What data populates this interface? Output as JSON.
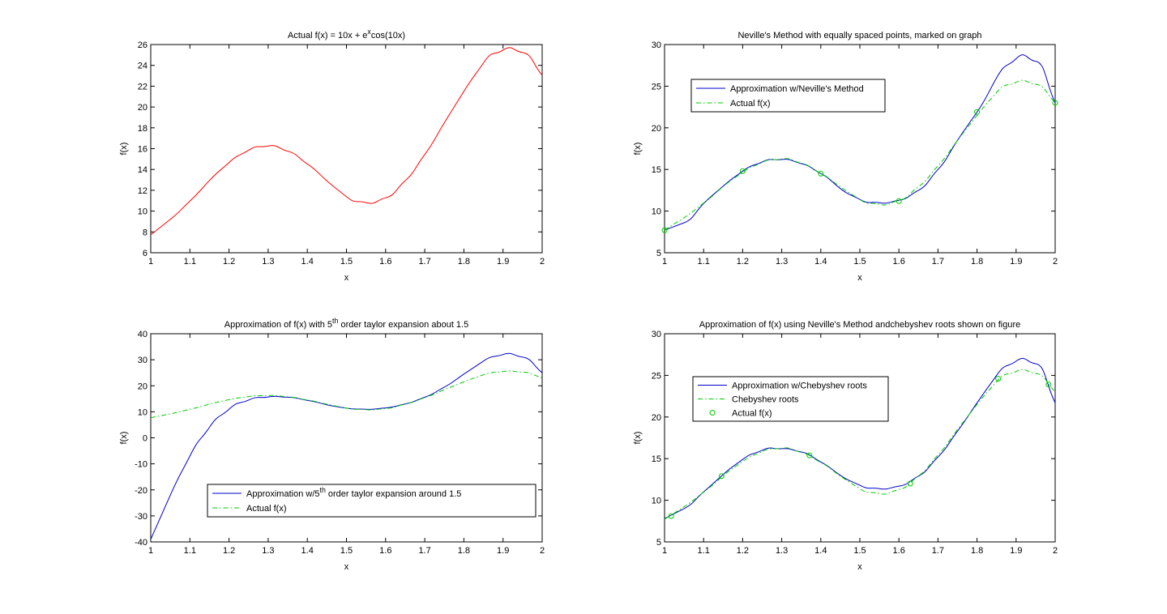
{
  "figure": {
    "background": "#ffffff",
    "colors": {
      "actual_red": "#ff0000",
      "approx_blue": "#0000cc",
      "actual_green": "#00cc00"
    }
  },
  "chart_data": [
    {
      "type": "line",
      "title": {
        "pre": "Actual f(x) = 10x + e",
        "sup": "x",
        "post": "cos(10x)"
      },
      "xlabel": "x",
      "ylabel": "f(x)",
      "xlim": [
        1,
        2
      ],
      "ylim": [
        6,
        26
      ],
      "xticks": [
        "1",
        "1.1",
        "1.2",
        "1.3",
        "1.4",
        "1.5",
        "1.6",
        "1.7",
        "1.8",
        "1.9",
        "2"
      ],
      "yticks": [
        "6",
        "8",
        "10",
        "12",
        "14",
        "16",
        "18",
        "20",
        "22",
        "24",
        "26"
      ],
      "legend": null,
      "series": [
        {
          "style": "solid",
          "color": "#ff0000",
          "x": [
            1.0,
            1.05,
            1.1,
            1.15,
            1.2,
            1.25,
            1.3,
            1.35,
            1.4,
            1.45,
            1.5,
            1.55,
            1.6,
            1.65,
            1.7,
            1.75,
            1.8,
            1.85,
            1.9,
            1.95,
            2.0
          ],
          "y": [
            7.72,
            9.21,
            10.96,
            12.94,
            14.66,
            15.85,
            16.25,
            15.75,
            14.53,
            12.91,
            11.38,
            10.82,
            11.28,
            12.92,
            15.44,
            18.49,
            21.51,
            24.24,
            25.47,
            25.23,
            23.05
          ]
        }
      ]
    },
    {
      "type": "line",
      "title": {
        "pre": "Neville's Method with equally spaced points, marked on graph",
        "sup": "",
        "post": ""
      },
      "xlabel": "x",
      "ylabel": "f(x)",
      "xlim": [
        1,
        2
      ],
      "ylim": [
        5,
        30
      ],
      "xticks": [
        "1",
        "1.1",
        "1.2",
        "1.3",
        "1.4",
        "1.5",
        "1.6",
        "1.7",
        "1.8",
        "1.9",
        "2"
      ],
      "yticks": [
        "5",
        "10",
        "15",
        "20",
        "25",
        "30"
      ],
      "legend": {
        "placement": "top-left",
        "entries": [
          {
            "label": "Approximation w/Neville's Method",
            "style": "solid",
            "color": "#0000cc",
            "marker": false
          },
          {
            "label": "Actual f(x)",
            "style": "dashdot",
            "color": "#00cc00",
            "marker": false
          }
        ]
      },
      "series": [
        {
          "style": "solid",
          "color": "#0000cc",
          "x": [
            1.0,
            1.05,
            1.1,
            1.15,
            1.2,
            1.25,
            1.3,
            1.35,
            1.4,
            1.45,
            1.5,
            1.55,
            1.6,
            1.65,
            1.7,
            1.75,
            1.8,
            1.85,
            1.9,
            1.95,
            2.0
          ],
          "y": [
            7.7,
            8.6,
            10.9,
            13.0,
            14.8,
            15.9,
            16.2,
            15.7,
            14.5,
            12.7,
            11.4,
            11.0,
            11.3,
            12.5,
            15.0,
            18.5,
            21.9,
            26.0,
            28.3,
            28.0,
            23.0
          ]
        },
        {
          "style": "dashdot",
          "color": "#00cc00",
          "x": [
            1.0,
            1.05,
            1.1,
            1.15,
            1.2,
            1.25,
            1.3,
            1.35,
            1.4,
            1.45,
            1.5,
            1.55,
            1.6,
            1.65,
            1.7,
            1.75,
            1.8,
            1.85,
            1.9,
            1.95,
            2.0
          ],
          "y": [
            7.72,
            9.21,
            10.96,
            12.94,
            14.66,
            15.85,
            16.25,
            15.75,
            14.53,
            12.91,
            11.38,
            10.82,
            11.28,
            12.92,
            15.44,
            18.49,
            21.51,
            24.24,
            25.47,
            25.23,
            23.05
          ]
        },
        {
          "style": "markers",
          "color": "#00cc00",
          "x": [
            1.0,
            1.2,
            1.4,
            1.6,
            1.8,
            2.0
          ],
          "y": [
            7.7,
            14.8,
            14.5,
            11.2,
            21.9,
            23.0
          ]
        }
      ]
    },
    {
      "type": "line",
      "title": {
        "pre": "Approximation of f(x) with 5",
        "sup": "th",
        "post": " order taylor expansion about 1.5"
      },
      "xlabel": "x",
      "ylabel": "f(x)",
      "xlim": [
        1,
        2
      ],
      "ylim": [
        -40,
        40
      ],
      "xticks": [
        "1",
        "1.1",
        "1.2",
        "1.3",
        "1.4",
        "1.5",
        "1.6",
        "1.7",
        "1.8",
        "1.9",
        "2"
      ],
      "yticks": [
        "-40",
        "-30",
        "-20",
        "-10",
        "0",
        "10",
        "20",
        "30",
        "40"
      ],
      "legend": {
        "placement": "bottom-center",
        "entries": [
          {
            "label": {
              "pre": "Approximation w/5",
              "sup": "th",
              "post": " order taylor expansion around 1.5"
            },
            "style": "solid",
            "color": "#0000cc",
            "marker": false
          },
          {
            "label": "Actual f(x)",
            "style": "dashdot",
            "color": "#00cc00",
            "marker": false
          }
        ]
      },
      "series": [
        {
          "style": "solid",
          "color": "#0000cc",
          "x": [
            1.0,
            1.05,
            1.1,
            1.15,
            1.2,
            1.25,
            1.3,
            1.35,
            1.4,
            1.45,
            1.5,
            1.55,
            1.6,
            1.65,
            1.7,
            1.75,
            1.8,
            1.85,
            1.9,
            1.95,
            2.0
          ],
          "y": [
            -39,
            -22,
            -7,
            4,
            11,
            14.5,
            15.7,
            15.6,
            14.4,
            12.7,
            11.4,
            11.0,
            11.5,
            13.0,
            15.6,
            19.5,
            24.5,
            29.5,
            32.0,
            31.0,
            25.0
          ]
        },
        {
          "style": "dashdot",
          "color": "#00cc00",
          "x": [
            1.0,
            1.05,
            1.1,
            1.15,
            1.2,
            1.25,
            1.3,
            1.35,
            1.4,
            1.45,
            1.5,
            1.55,
            1.6,
            1.65,
            1.7,
            1.75,
            1.8,
            1.85,
            1.9,
            1.95,
            2.0
          ],
          "y": [
            7.72,
            9.21,
            10.96,
            12.94,
            14.66,
            15.85,
            16.25,
            15.75,
            14.53,
            12.91,
            11.38,
            10.82,
            11.28,
            12.92,
            15.44,
            18.49,
            21.51,
            24.24,
            25.47,
            25.23,
            23.05
          ]
        }
      ]
    },
    {
      "type": "line",
      "title": {
        "pre": "Approximation of f(x) using Neville's Method andchebyshev roots shown on figure",
        "sup": "",
        "post": ""
      },
      "xlabel": "x",
      "ylabel": "f(x)",
      "xlim": [
        1,
        2
      ],
      "ylim": [
        5,
        30
      ],
      "xticks": [
        "1",
        "1.1",
        "1.2",
        "1.3",
        "1.4",
        "1.5",
        "1.6",
        "1.7",
        "1.8",
        "1.9",
        "2"
      ],
      "yticks": [
        "5",
        "10",
        "15",
        "20",
        "25",
        "30"
      ],
      "legend": {
        "placement": "top-left",
        "entries": [
          {
            "label": "Approximation w/Chebyshev roots",
            "style": "solid",
            "color": "#0000cc",
            "marker": false
          },
          {
            "label": "Chebyshev roots",
            "style": "dashdot",
            "color": "#00cc00",
            "marker": false
          },
          {
            "label": "Actual f(x)",
            "style": "none",
            "color": "#00cc00",
            "marker": true
          }
        ]
      },
      "series": [
        {
          "style": "solid",
          "color": "#0000cc",
          "x": [
            1.0,
            1.05,
            1.1,
            1.15,
            1.2,
            1.25,
            1.3,
            1.35,
            1.4,
            1.45,
            1.5,
            1.55,
            1.6,
            1.65,
            1.7,
            1.75,
            1.8,
            1.85,
            1.9,
            1.95,
            2.0
          ],
          "y": [
            7.8,
            9.0,
            11.0,
            13.1,
            14.9,
            16.0,
            16.2,
            15.8,
            14.6,
            13.0,
            11.8,
            11.4,
            11.7,
            12.9,
            15.2,
            18.3,
            21.7,
            25.0,
            26.7,
            26.4,
            21.7
          ]
        },
        {
          "style": "dashdot",
          "color": "#00cc00",
          "x": [
            1.0,
            1.05,
            1.1,
            1.15,
            1.2,
            1.25,
            1.3,
            1.35,
            1.4,
            1.45,
            1.5,
            1.55,
            1.6,
            1.65,
            1.7,
            1.75,
            1.8,
            1.85,
            1.9,
            1.95,
            2.0
          ],
          "y": [
            7.72,
            9.21,
            10.96,
            12.94,
            14.66,
            15.85,
            16.25,
            15.75,
            14.53,
            12.91,
            11.38,
            10.82,
            11.28,
            12.92,
            15.44,
            18.49,
            21.51,
            24.24,
            25.47,
            25.23,
            23.05
          ]
        },
        {
          "style": "markers",
          "color": "#00cc00",
          "x": [
            1.017,
            1.146,
            1.371,
            1.629,
            1.854,
            1.983
          ],
          "y": [
            8.1,
            12.9,
            15.4,
            12.0,
            24.6,
            23.9
          ]
        }
      ]
    }
  ]
}
